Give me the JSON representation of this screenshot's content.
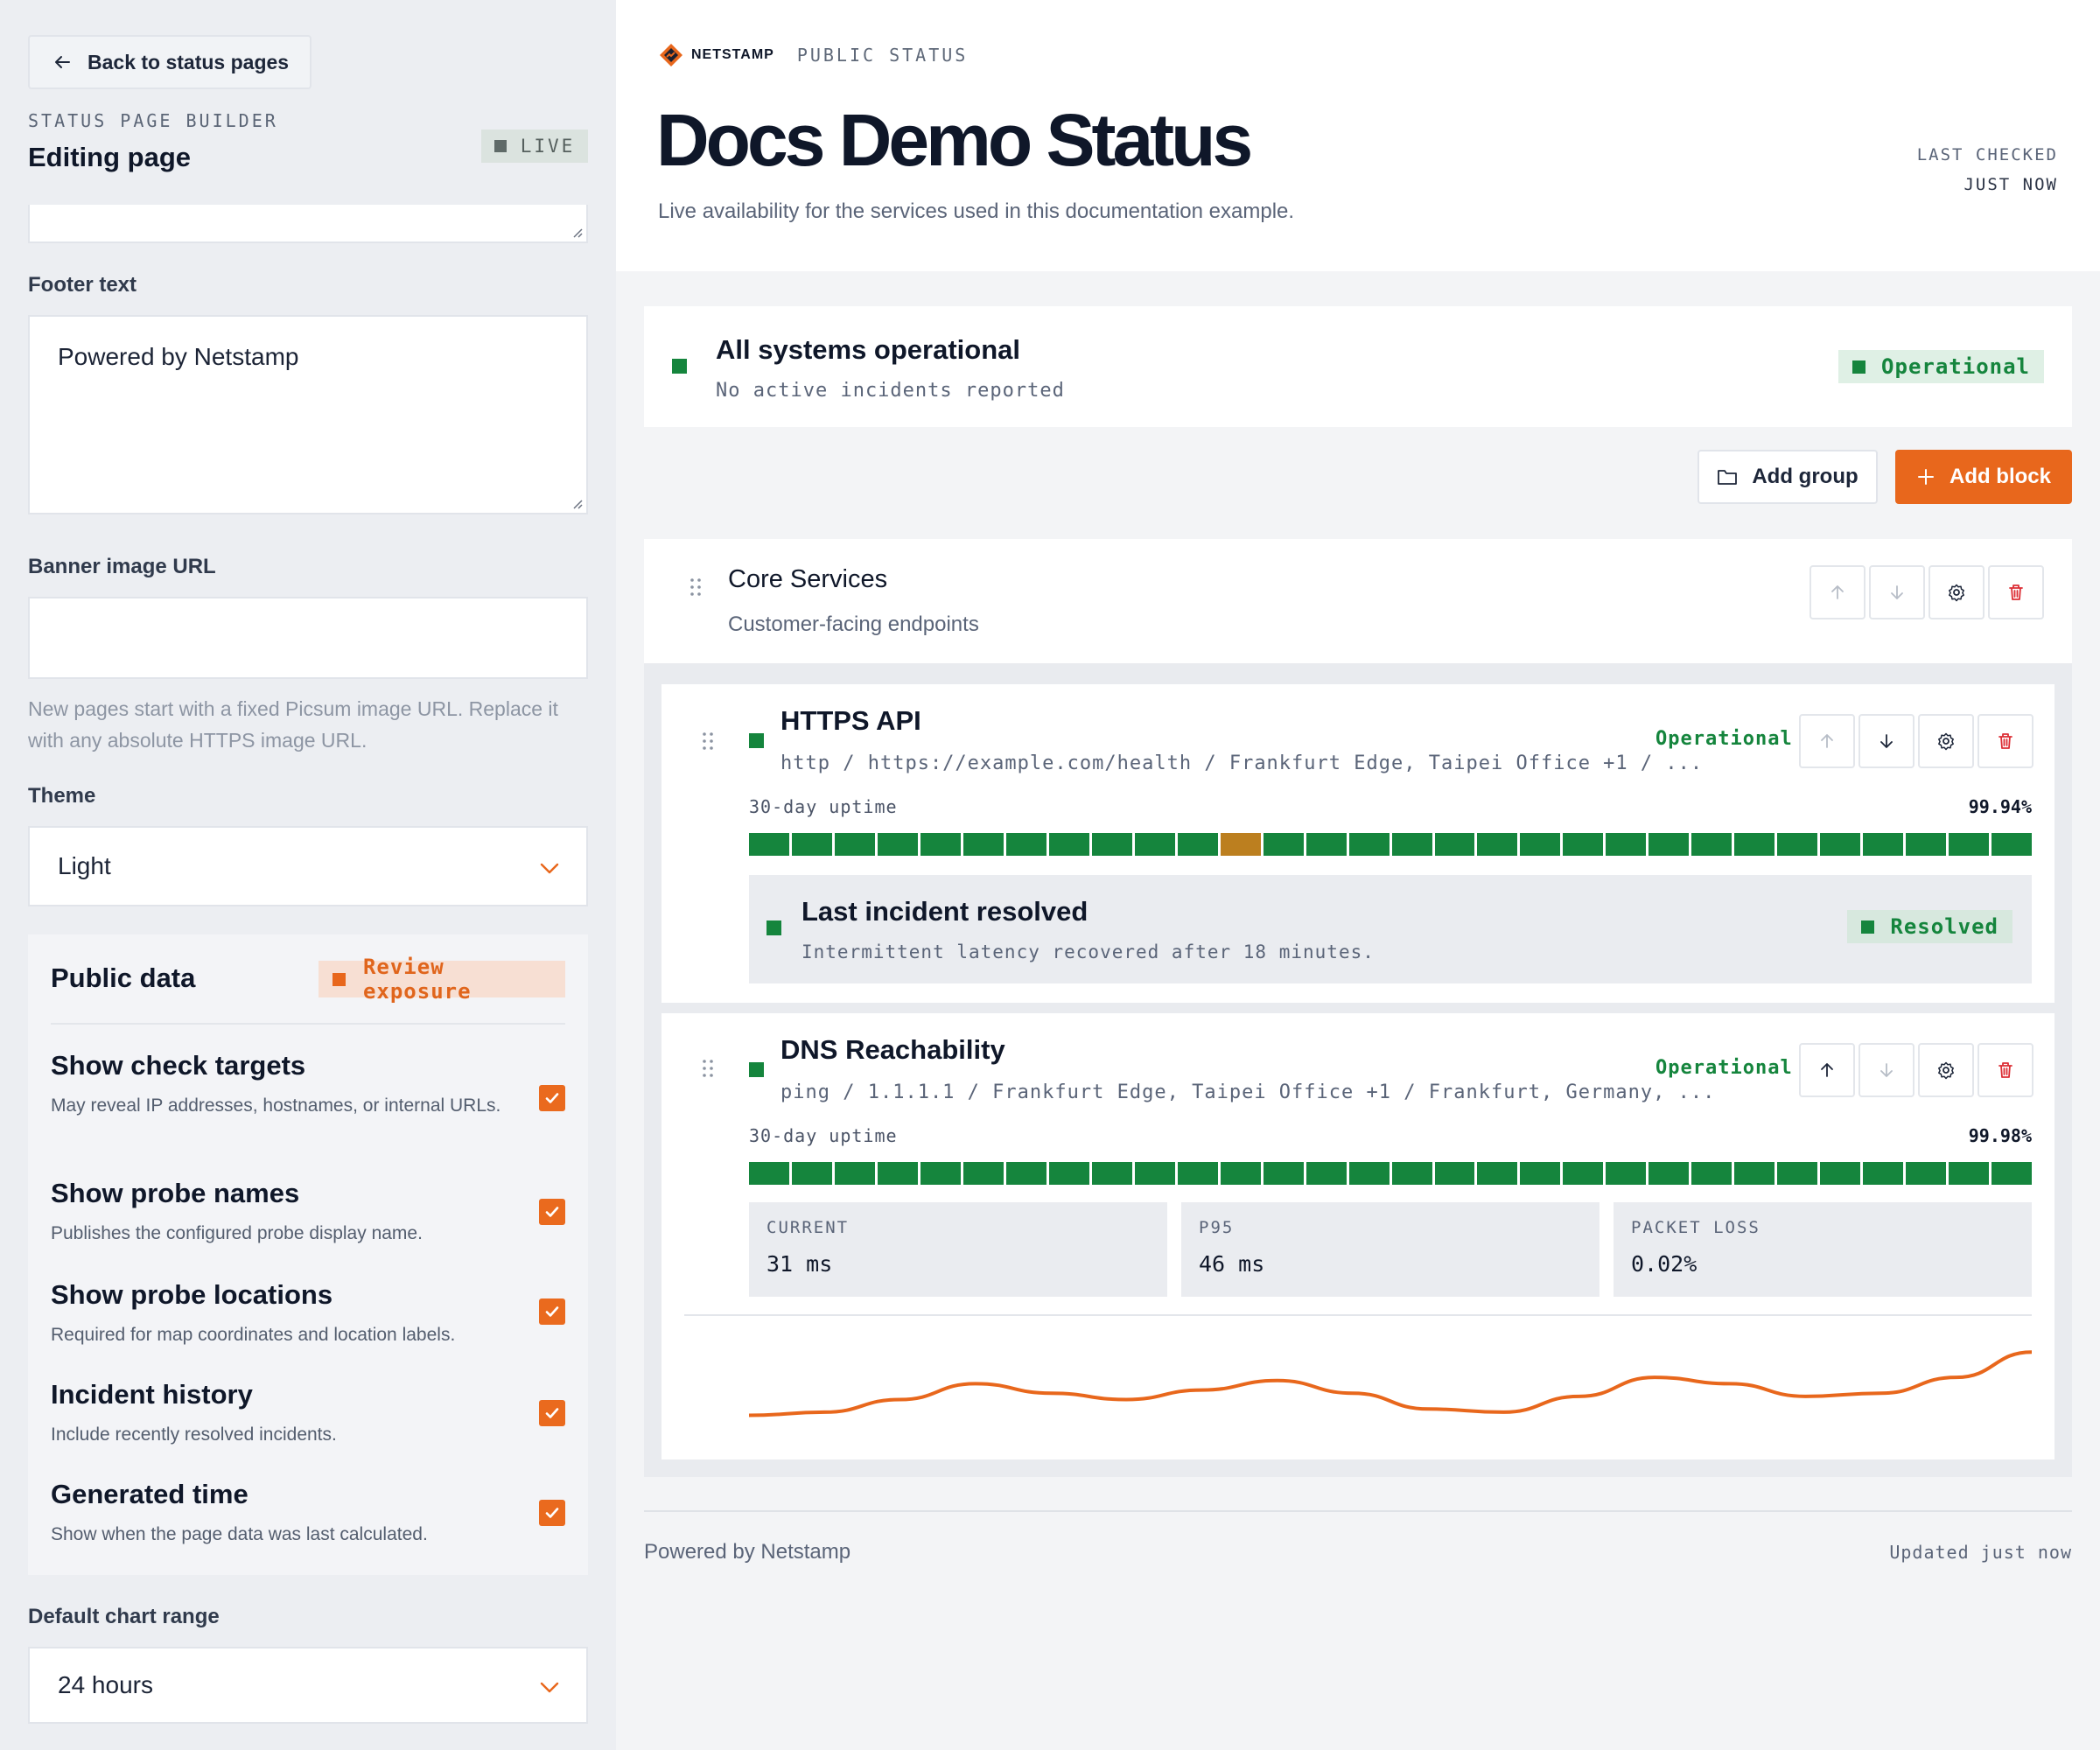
{
  "sidebar": {
    "back_label": "Back to status pages",
    "eyebrow": "STATUS PAGE BUILDER",
    "title": "Editing page",
    "live_badge": "LIVE",
    "footer_label": "Footer text",
    "footer_value": "Powered by Netstamp",
    "banner_label": "Banner image URL",
    "banner_value": "",
    "banner_help": "New pages start with a fixed Picsum image URL. Replace it with any absolute HTTPS image URL.",
    "theme_label": "Theme",
    "theme_value": "Light",
    "public_data": {
      "title": "Public data",
      "badge": "Review exposure",
      "options": [
        {
          "title": "Show check targets",
          "desc": "May reveal IP addresses, hostnames, or internal URLs.",
          "checked": true
        },
        {
          "title": "Show probe names",
          "desc": "Publishes the configured probe display name.",
          "checked": true
        },
        {
          "title": "Show probe locations",
          "desc": "Required for map coordinates and location labels.",
          "checked": true
        },
        {
          "title": "Incident history",
          "desc": "Include recently resolved incidents.",
          "checked": true
        },
        {
          "title": "Generated time",
          "desc": "Show when the page data was last calculated.",
          "checked": true
        }
      ]
    },
    "chart_range_label": "Default chart range",
    "chart_range_value": "24 hours"
  },
  "main": {
    "brand": "NETSTAMP",
    "page_kind": "PUBLIC STATUS",
    "title": "Docs Demo Status",
    "subtitle": "Live availability for the services used in this documentation example.",
    "last_checked_label": "LAST CHECKED",
    "last_checked_value": "JUST NOW",
    "overall": {
      "title": "All systems operational",
      "subtitle": "No active incidents reported",
      "badge": "Operational"
    },
    "actions": {
      "add_group": "Add group",
      "add_block": "Add block"
    },
    "group": {
      "title": "Core Services",
      "subtitle": "Customer-facing endpoints",
      "services": [
        {
          "name": "HTTPS API",
          "meta": "http / https://example.com/health / Frankfurt Edge, Taipei Office +1 / ...",
          "status": "Operational",
          "uptime_label": "30-day uptime",
          "uptime_value": "99.94%",
          "days": [
            "ok",
            "ok",
            "ok",
            "ok",
            "ok",
            "ok",
            "ok",
            "ok",
            "ok",
            "ok",
            "ok",
            "warn",
            "ok",
            "ok",
            "ok",
            "ok",
            "ok",
            "ok",
            "ok",
            "ok",
            "ok",
            "ok",
            "ok",
            "ok",
            "ok",
            "ok",
            "ok",
            "ok",
            "ok",
            "ok"
          ],
          "incident": {
            "title": "Last incident resolved",
            "desc": "Intermittent latency recovered after 18 minutes.",
            "badge": "Resolved"
          }
        },
        {
          "name": "DNS Reachability",
          "meta": "ping / 1.1.1.1 / Frankfurt Edge, Taipei Office +1 / Frankfurt, Germany, ...",
          "status": "Operational",
          "uptime_label": "30-day uptime",
          "uptime_value": "99.98%",
          "days": [
            "ok",
            "ok",
            "ok",
            "ok",
            "ok",
            "ok",
            "ok",
            "ok",
            "ok",
            "ok",
            "ok",
            "ok",
            "ok",
            "ok",
            "ok",
            "ok",
            "ok",
            "ok",
            "ok",
            "ok",
            "ok",
            "ok",
            "ok",
            "ok",
            "ok",
            "ok",
            "ok",
            "ok",
            "ok",
            "ok"
          ],
          "metrics": [
            {
              "label": "CURRENT",
              "value": "31 ms"
            },
            {
              "label": "P95",
              "value": "46 ms"
            },
            {
              "label": "PACKET LOSS",
              "value": "0.02%"
            }
          ],
          "latency_trend": [
            30,
            31,
            35,
            40,
            37,
            35,
            38,
            41,
            37,
            32,
            31,
            36,
            42,
            40,
            36,
            37,
            42,
            50
          ]
        }
      ]
    },
    "footer_left": "Powered by Netstamp",
    "footer_right": "Updated just now"
  },
  "colors": {
    "accent": "#e8671c",
    "operational": "#15853d",
    "degraded": "#bc7f1f",
    "ink": "#0f1729"
  }
}
